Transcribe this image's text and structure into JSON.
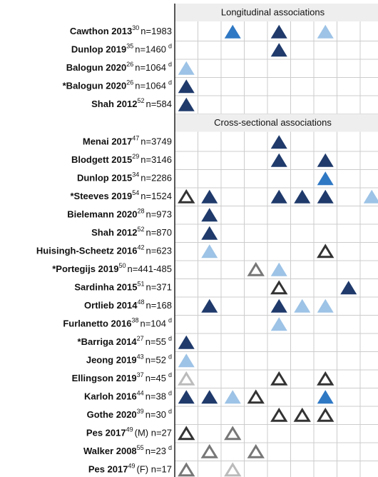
{
  "sections": [
    {
      "title": "Longitudinal associations",
      "rows": [
        {
          "name": "Cawthon 2013",
          "ref": "30",
          "n": "n=1983",
          "markers": [
            null,
            null,
            "filled-mid",
            null,
            "filled-dark",
            null,
            "filled-light",
            null,
            null
          ]
        },
        {
          "name": "Dunlop 2019",
          "ref": "35",
          "n": "n=1460",
          "note": "d",
          "markers": [
            null,
            null,
            null,
            null,
            "filled-dark",
            null,
            null,
            null,
            null
          ]
        },
        {
          "name": "Balogun 2020",
          "ref": "26",
          "n": "n=1064",
          "note": "d",
          "markers": [
            "filled-light",
            null,
            null,
            null,
            null,
            null,
            null,
            null,
            null
          ]
        },
        {
          "name": "*Balogun 2020",
          "ref": "26",
          "n": "n=1064",
          "note": "d",
          "markers": [
            "filled-dark",
            null,
            null,
            null,
            null,
            null,
            null,
            null,
            null
          ]
        },
        {
          "name": "Shah 2012",
          "ref": "52",
          "n": "n=584",
          "markers": [
            "filled-dark",
            null,
            null,
            null,
            null,
            null,
            null,
            null,
            null
          ]
        }
      ]
    },
    {
      "title": "Cross-sectional associations",
      "rows": [
        {
          "name": "Menai 2017",
          "ref": "47",
          "n": "n=3749",
          "markers": [
            null,
            null,
            null,
            null,
            "filled-dark",
            null,
            null,
            null,
            null
          ]
        },
        {
          "name": "Blodgett 2015",
          "ref": "29",
          "n": "n=3146",
          "markers": [
            null,
            null,
            null,
            null,
            "filled-dark",
            null,
            "filled-dark",
            null,
            null
          ]
        },
        {
          "name": "Dunlop 2015",
          "ref": "34",
          "n": "n=2286",
          "markers": [
            null,
            null,
            null,
            null,
            null,
            null,
            "filled-mid",
            null,
            null
          ]
        },
        {
          "name": "*Steeves 2019",
          "ref": "54",
          "n": "n=1524",
          "markers": [
            "open-dark",
            "filled-dark",
            null,
            null,
            "filled-dark",
            "filled-dark",
            "filled-dark",
            null,
            "filled-light"
          ]
        },
        {
          "name": "Bielemann 2020",
          "ref": "28",
          "n": "n=973",
          "markers": [
            null,
            "filled-dark",
            null,
            null,
            null,
            null,
            null,
            null,
            null
          ]
        },
        {
          "name": "Shah 2012",
          "ref": "52",
          "n": "n=870",
          "markers": [
            null,
            "filled-dark",
            null,
            null,
            null,
            null,
            null,
            null,
            null
          ]
        },
        {
          "name": "Huisingh-Scheetz 2016",
          "ref": "42",
          "n": "n=623",
          "markers": [
            null,
            "filled-light",
            null,
            null,
            null,
            null,
            "open-dark",
            null,
            null
          ]
        },
        {
          "name": "*Portegijs 2019",
          "ref": "50",
          "n": "n=441-485",
          "markers": [
            null,
            null,
            null,
            "open-mid",
            "filled-light",
            null,
            null,
            null,
            null
          ]
        },
        {
          "name": "Sardinha 2015",
          "ref": "51",
          "n": "n=371",
          "markers": [
            null,
            null,
            null,
            null,
            "open-dark",
            null,
            null,
            "filled-dark",
            null
          ]
        },
        {
          "name": "Ortlieb 2014",
          "ref": "48",
          "n": "n=168",
          "markers": [
            null,
            "filled-dark",
            null,
            null,
            "filled-dark",
            "filled-light",
            "filled-light",
            null,
            null
          ]
        },
        {
          "name": "Furlanetto 2016",
          "ref": "38",
          "n": "n=104",
          "note": "d",
          "markers": [
            null,
            null,
            null,
            null,
            "filled-light",
            null,
            null,
            null,
            null
          ]
        },
        {
          "name": "*Barriga 2014",
          "ref": "27",
          "n": "n=55",
          "note": "d",
          "markers": [
            "filled-dark",
            null,
            null,
            null,
            null,
            null,
            null,
            null,
            null
          ]
        },
        {
          "name": "Jeong 2019",
          "ref": "43",
          "n": "n=52",
          "note": "d",
          "markers": [
            "filled-light",
            null,
            null,
            null,
            null,
            null,
            null,
            null,
            null
          ]
        },
        {
          "name": "Ellingson 2019",
          "ref": "37",
          "n": "n=45",
          "note": "d",
          "markers": [
            "open-light",
            null,
            null,
            null,
            "open-dark",
            null,
            "open-dark",
            null,
            null
          ]
        },
        {
          "name": "Karloh 2016",
          "ref": "44",
          "n": "n=38",
          "note": "d",
          "markers": [
            "filled-dark",
            "filled-dark",
            "filled-light",
            "open-dark",
            null,
            null,
            "filled-mid",
            null,
            null
          ]
        },
        {
          "name": "Gothe 2020",
          "ref": "39",
          "n": "n=30",
          "note": "d",
          "markers": [
            null,
            null,
            null,
            null,
            "open-dark",
            "open-dark",
            "open-dark",
            null,
            null
          ]
        },
        {
          "name": "Pes 2017",
          "ref": "49",
          "n": "(M) n=27",
          "markers": [
            "open-dark",
            null,
            "open-mid",
            null,
            null,
            null,
            null,
            null,
            null
          ]
        },
        {
          "name": "Walker 2008",
          "ref": "55",
          "n": "n=23",
          "note": "d",
          "markers": [
            null,
            "open-mid",
            null,
            "open-mid",
            null,
            null,
            null,
            null,
            null
          ]
        },
        {
          "name": "Pes 2017",
          "ref": "49",
          "n": "(F) n=17",
          "markers": [
            "open-mid",
            null,
            "open-light",
            null,
            null,
            null,
            null,
            null,
            null
          ]
        }
      ]
    }
  ]
}
